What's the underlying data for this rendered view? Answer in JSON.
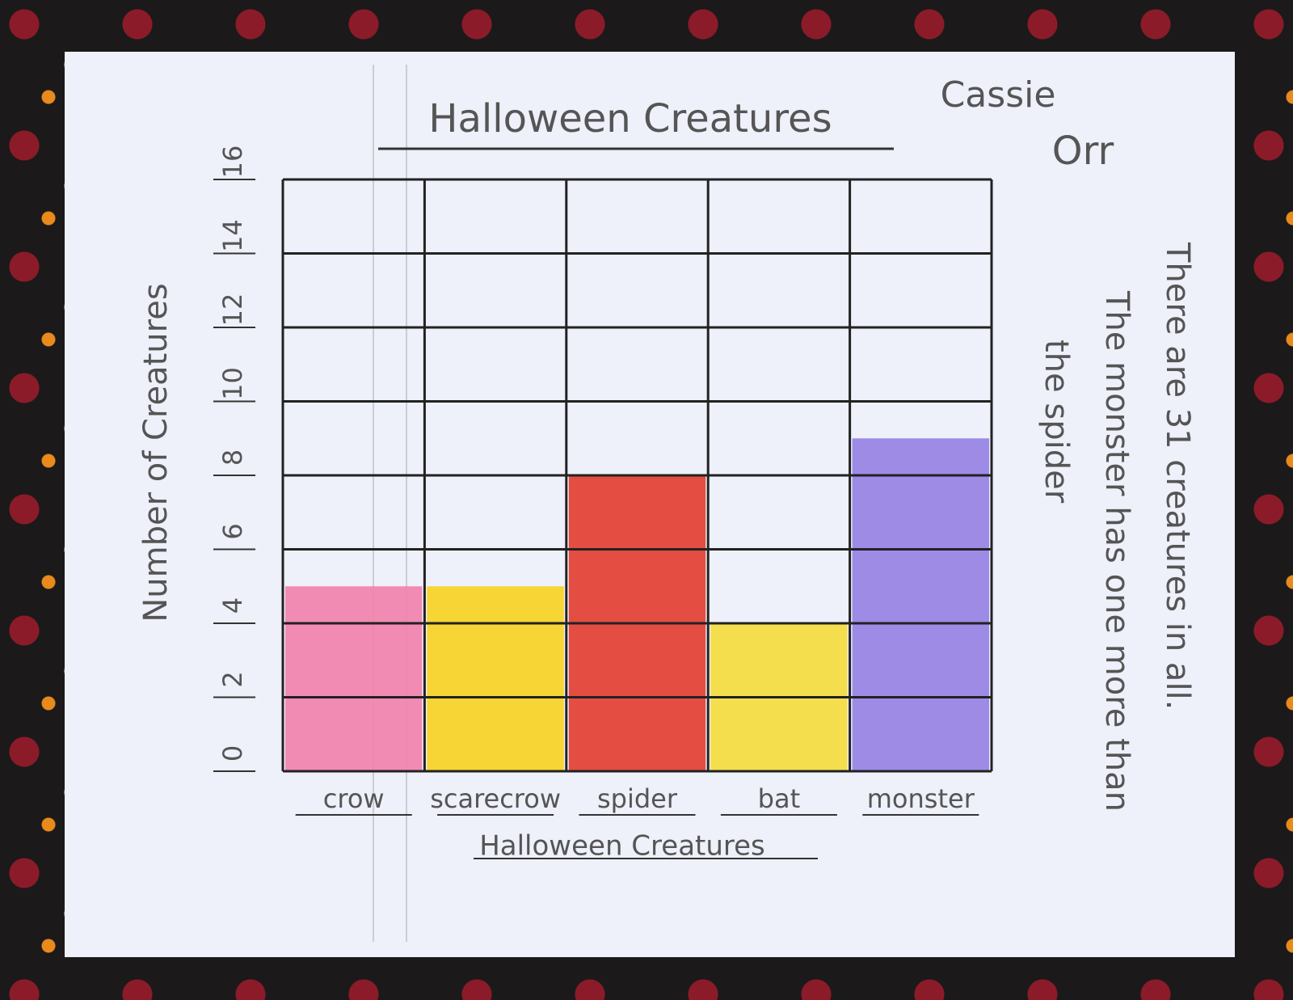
{
  "chart_data": {
    "type": "bar",
    "title": "Halloween Creatures",
    "author": [
      "Cassie",
      "Orr"
    ],
    "x_label": "Halloween Creatures",
    "y_label": "Number of Creatures",
    "categories": [
      "crow",
      "scarecrow",
      "spider",
      "bat",
      "monster"
    ],
    "values": [
      5,
      5,
      8,
      4,
      9
    ],
    "colors": [
      "#f27fab",
      "#f6d21e",
      "#e23b2e",
      "#f4dc3a",
      "#937fe2"
    ],
    "ylim": [
      0,
      16
    ],
    "yticks": [
      0,
      2,
      4,
      6,
      8,
      10,
      12,
      14,
      16
    ],
    "grid": true,
    "note": [
      "There are 31 creatures in all.",
      "The monster has one more than",
      "the spider"
    ]
  }
}
